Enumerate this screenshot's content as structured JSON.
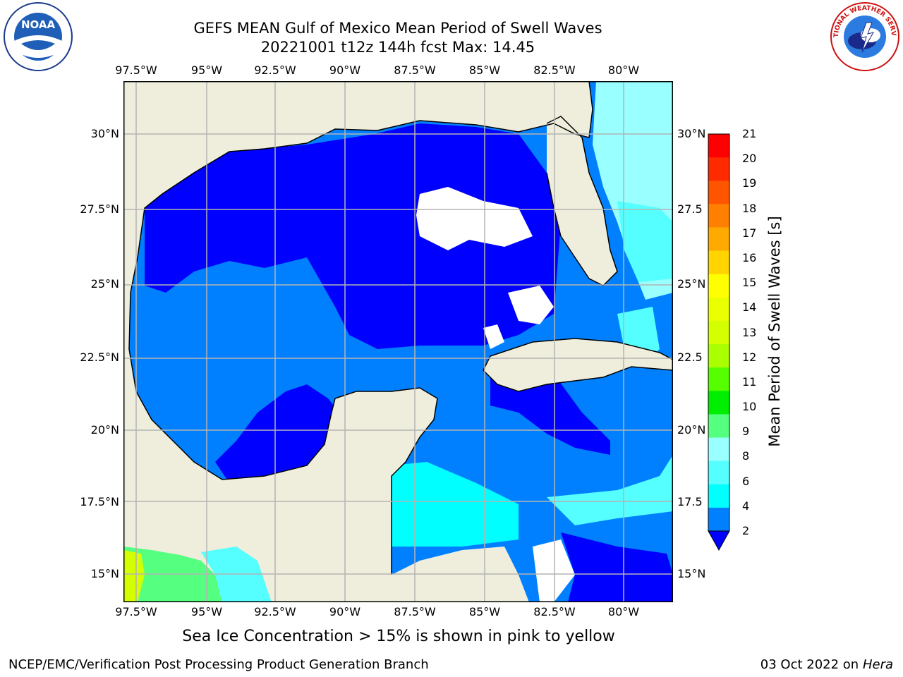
{
  "title": {
    "line1": "GEFS MEAN Gulf of Mexico Mean Period of Swell Waves",
    "line2": "20221001 t12z 144h fcst   Max: 14.45"
  },
  "caption": "Sea Ice Concentration > 15% is shown in pink to yellow",
  "footer": {
    "left": "NCEP/EMC/Verification Post Processing Product Generation Branch",
    "right_date": "03 Oct 2022 on ",
    "right_host": "Hera"
  },
  "logos": {
    "left": "NOAA",
    "right": "NATIONAL WEATHER SERVICE"
  },
  "map": {
    "lon_ticks": [
      "97.5°W",
      "95°W",
      "92.5°W",
      "90°W",
      "87.5°W",
      "85°W",
      "82.5°W",
      "80°W"
    ],
    "lat_ticks_left": [
      "30°N",
      "27.5°N",
      "25°N",
      "22.5°N",
      "20°N",
      "17.5°N",
      "15°N"
    ],
    "lat_ticks_right": [
      "30°N",
      "27.5",
      "25°N",
      "22.5",
      "20°N",
      "17.5",
      "15°N"
    ],
    "colors": {
      "land": "#efeedc",
      "grid": "#b4b4b4"
    }
  },
  "colorbar": {
    "title": "Mean Period of Swell Waves [s]",
    "labels": [
      "21",
      "20",
      "19",
      "18",
      "17",
      "16",
      "15",
      "14",
      "13",
      "12",
      "11",
      "10",
      "9",
      "8",
      "6",
      "4",
      "2"
    ],
    "colors": [
      "#ff0000",
      "#ff2a00",
      "#ff5500",
      "#ff8000",
      "#ffaa00",
      "#ffd400",
      "#ffff00",
      "#eaff00",
      "#d4ff00",
      "#aaff00",
      "#55ff00",
      "#00ee00",
      "#55ff80",
      "#99ffff",
      "#55ffff",
      "#00ffff",
      "#0080ff"
    ],
    "under_color": "#0000ff"
  }
}
